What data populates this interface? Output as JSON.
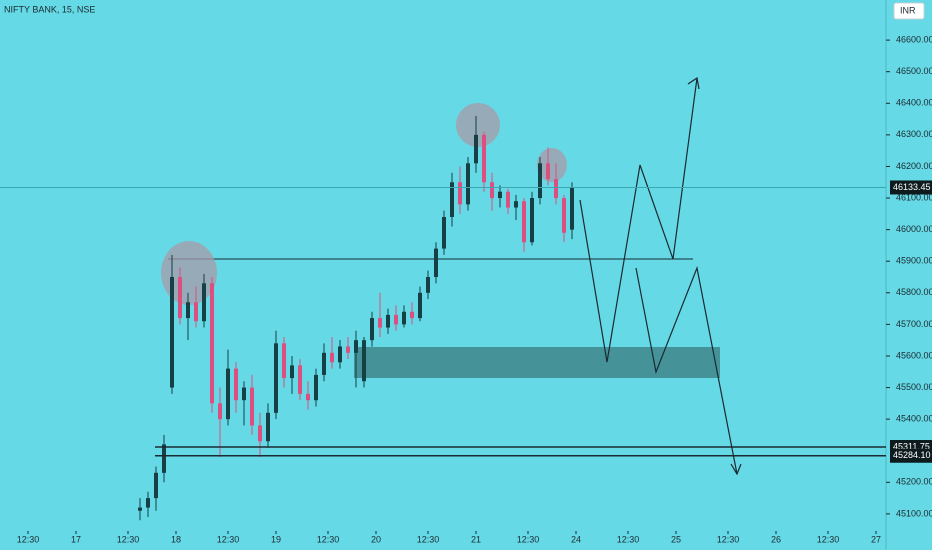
{
  "chart_data": {
    "type": "candlestick",
    "title": "NIFTY BANK, 15, NSE",
    "currency": "INR",
    "up_color": "#163f46",
    "down_color": "#dc4f7f",
    "background": "#66d9e6",
    "x": [
      35,
      37,
      39,
      41,
      43,
      45,
      47,
      49,
      51,
      53,
      55,
      57,
      59,
      61,
      63,
      65,
      67,
      69,
      71,
      73,
      75,
      77,
      79,
      81,
      83,
      85,
      87,
      89,
      91,
      93,
      95,
      97,
      99,
      101,
      103,
      105,
      107,
      109,
      111,
      113,
      115,
      117,
      119,
      121,
      123,
      125,
      127,
      129,
      131,
      133,
      135,
      137,
      139,
      141,
      143
    ],
    "open": [
      45110,
      45120,
      45150,
      45230,
      45500,
      45850,
      45720,
      45770,
      45710,
      45830,
      45450,
      45400,
      45560,
      45460,
      45500,
      45380,
      45330,
      45420,
      45640,
      45530,
      45570,
      45480,
      45460,
      45540,
      45610,
      45580,
      45630,
      45610,
      45520,
      45650,
      45720,
      45690,
      45730,
      45700,
      45740,
      45720,
      45800,
      45850,
      45940,
      46040,
      46150,
      46080,
      46210,
      46300,
      46150,
      46100,
      46120,
      46070,
      46090,
      45960,
      46100,
      46210,
      46160,
      46100,
      46000
    ],
    "high": [
      45150,
      45170,
      45250,
      45350,
      45920,
      45880,
      45800,
      45820,
      45860,
      45850,
      45500,
      45620,
      45580,
      45520,
      45540,
      45420,
      45450,
      45680,
      45660,
      45600,
      45590,
      45520,
      45560,
      45640,
      45660,
      45650,
      45660,
      45680,
      45660,
      45740,
      45800,
      45750,
      45760,
      45760,
      45770,
      45820,
      45870,
      45960,
      46060,
      46180,
      46200,
      46230,
      46360,
      46310,
      46180,
      46140,
      46130,
      46110,
      46100,
      46120,
      46230,
      46260,
      46210,
      46110,
      46150
    ],
    "low": [
      45080,
      45090,
      45110,
      45200,
      45480,
      45700,
      45650,
      45690,
      45690,
      45420,
      45280,
      45380,
      45420,
      45380,
      45350,
      45280,
      45310,
      45400,
      45500,
      45480,
      45460,
      45430,
      45440,
      45520,
      45560,
      45560,
      45590,
      45500,
      45500,
      45630,
      45660,
      45670,
      45680,
      45690,
      45700,
      45710,
      45780,
      45830,
      45920,
      46010,
      46050,
      46060,
      46180,
      46120,
      46060,
      46070,
      46050,
      46030,
      45930,
      45950,
      46080,
      46140,
      46080,
      45960,
      45970
    ],
    "close": [
      45120,
      45150,
      45230,
      45320,
      45850,
      45720,
      45770,
      45710,
      45830,
      45450,
      45400,
      45560,
      45460,
      45500,
      45380,
      45330,
      45420,
      45640,
      45530,
      45570,
      45480,
      45460,
      45540,
      45610,
      45580,
      45630,
      45610,
      45650,
      45650,
      45720,
      45690,
      45730,
      45700,
      45740,
      45720,
      45800,
      45850,
      45940,
      46040,
      46150,
      46080,
      46210,
      46300,
      46150,
      46100,
      46120,
      46070,
      46090,
      45960,
      46100,
      46210,
      46160,
      46100,
      45990,
      46133.45
    ],
    "xlim": [
      0,
      221.25
    ],
    "xticks": [
      {
        "value": 7,
        "label": "12:30"
      },
      {
        "value": 19,
        "label": "17"
      },
      {
        "value": 32,
        "label": "12:30"
      },
      {
        "value": 44,
        "label": "18"
      },
      {
        "value": 57,
        "label": "12:30"
      },
      {
        "value": 69,
        "label": "19"
      },
      {
        "value": 82,
        "label": "12:30"
      },
      {
        "value": 94,
        "label": "20"
      },
      {
        "value": 107,
        "label": "12:30"
      },
      {
        "value": 119,
        "label": "21"
      },
      {
        "value": 132,
        "label": "12:30"
      },
      {
        "value": 144,
        "label": "24"
      },
      {
        "value": 157,
        "label": "12:30"
      },
      {
        "value": 169,
        "label": "25"
      },
      {
        "value": 182,
        "label": "12:30"
      },
      {
        "value": 194,
        "label": "26"
      },
      {
        "value": 207,
        "label": "12:30"
      },
      {
        "value": 219,
        "label": "27"
      }
    ],
    "ylim": [
      45049,
      46727
    ],
    "yticks": [
      {
        "value": 46600,
        "label": "46600.00"
      },
      {
        "value": 46500,
        "label": "46500.00"
      },
      {
        "value": 46400,
        "label": "46400.00"
      },
      {
        "value": 46300,
        "label": "46300.00"
      },
      {
        "value": 46200,
        "label": "46200.00"
      },
      {
        "value": 46100,
        "label": "46100.00"
      },
      {
        "value": 46000,
        "label": "46000.00"
      },
      {
        "value": 45900,
        "label": "45900.00"
      },
      {
        "value": 45800,
        "label": "45800.00"
      },
      {
        "value": 45700,
        "label": "45700.00"
      },
      {
        "value": 45600,
        "label": "45600.00"
      },
      {
        "value": 45500,
        "label": "45500.00"
      },
      {
        "value": 45400,
        "label": "45400.00"
      },
      {
        "value": 45200,
        "label": "45200.00"
      },
      {
        "value": 45100,
        "label": "45100.00"
      }
    ],
    "price_labels": [
      {
        "value": 46133.45,
        "label": "46133.45"
      },
      {
        "value": 45311.75,
        "label": "45311.75"
      },
      {
        "value": 45284.1,
        "label": "45284.10"
      }
    ]
  }
}
